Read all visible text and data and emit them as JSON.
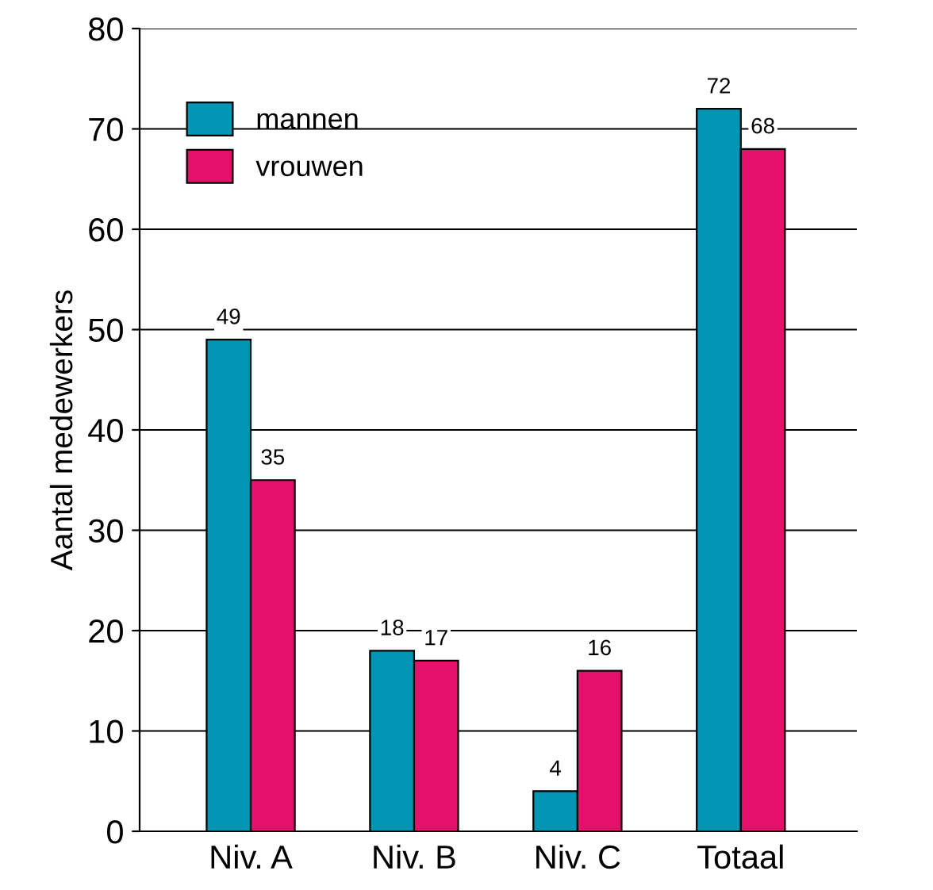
{
  "chart_data": {
    "type": "bar",
    "ylabel": "Aantal medewerkers",
    "categories": [
      "Niv. A",
      "Niv. B",
      "Niv. C",
      "Totaal"
    ],
    "series": [
      {
        "name": "mannen",
        "color": "#0096b4",
        "values": [
          49,
          18,
          4,
          72
        ]
      },
      {
        "name": "vrouwen",
        "color": "#e5106a",
        "values": [
          35,
          17,
          16,
          68
        ]
      }
    ],
    "ylim": [
      0,
      80
    ],
    "yticks": [
      0,
      10,
      20,
      30,
      40,
      50,
      60,
      70,
      80
    ],
    "grid": "y",
    "legend": "top left",
    "data_labels": true
  }
}
